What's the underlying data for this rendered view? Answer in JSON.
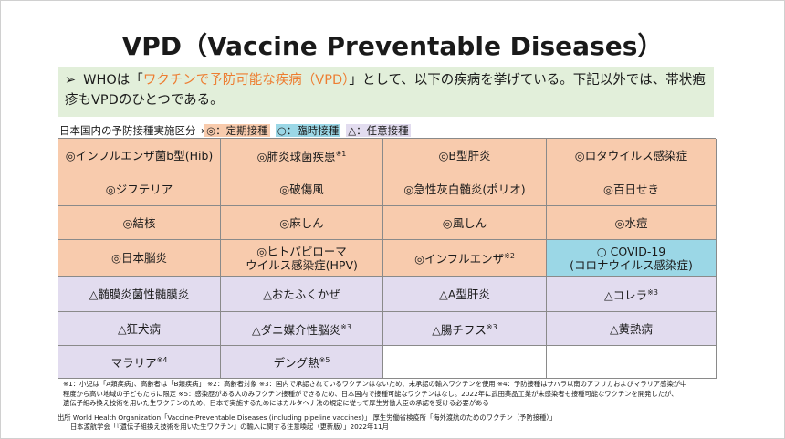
{
  "header": {
    "title": "VPD（Vaccine Preventable Diseases）"
  },
  "summary": {
    "bullet": "➢",
    "parts": [
      {
        "text": "WHOは「",
        "color": "#1a1a1a"
      },
      {
        "text": "ワクチンで予防可能な疾病（VPD）",
        "color": "#ed7d31"
      },
      {
        "text": "」として、以下の疾病を挙げている。下記以外では、帯状疱疹もVPDのひとつである。",
        "color": "#1a1a1a"
      }
    ]
  },
  "legend": {
    "label": "日本国内の予防接種実施区分→",
    "items": [
      {
        "text": "◎：定期接種",
        "color": "#f8cbad"
      },
      {
        "text": "○：臨時接種",
        "color": "#9bd7e6"
      },
      {
        "text": "△：任意接種",
        "color": "#e2dcef"
      }
    ]
  },
  "table": {
    "rows": [
      [
        {
          "lines": [
            "◎インフルエンザ菌b型(Hib)"
          ],
          "fill": "#f8cbad"
        },
        {
          "lines": [
            "◎肺炎球菌疾患"
          ],
          "note": "※1",
          "fill": "#f8cbad"
        },
        {
          "lines": [
            "◎B型肝炎"
          ],
          "fill": "#f8cbad"
        },
        {
          "lines": [
            "◎ロタウイルス感染症"
          ],
          "fill": "#f8cbad"
        }
      ],
      [
        {
          "lines": [
            "◎ジフテリア"
          ],
          "fill": "#f8cbad"
        },
        {
          "lines": [
            "◎破傷風"
          ],
          "fill": "#f8cbad"
        },
        {
          "lines": [
            "◎急性灰白髄炎(ポリオ)"
          ],
          "fill": "#f8cbad"
        },
        {
          "lines": [
            "◎百日せき"
          ],
          "fill": "#f8cbad"
        }
      ],
      [
        {
          "lines": [
            "◎結核"
          ],
          "fill": "#f8cbad"
        },
        {
          "lines": [
            "◎麻しん"
          ],
          "fill": "#f8cbad"
        },
        {
          "lines": [
            "◎風しん"
          ],
          "fill": "#f8cbad"
        },
        {
          "lines": [
            "◎水痘"
          ],
          "fill": "#f8cbad"
        }
      ],
      [
        {
          "lines": [
            "◎日本脳炎"
          ],
          "fill": "#f8cbad"
        },
        {
          "lines": [
            "◎ヒトパピローマ",
            "ウイルス感染症(HPV)"
          ],
          "fill": "#f8cbad"
        },
        {
          "lines": [
            "◎インフルエンザ"
          ],
          "note": "※2",
          "fill": "#f8cbad"
        },
        {
          "lines": [
            "○ COVID-19",
            "(コロナウイルス感染症)"
          ],
          "fill": "#9bd7e6"
        }
      ],
      [
        {
          "lines": [
            "△髄膜炎菌性髄膜炎"
          ],
          "fill": "#e2dcef"
        },
        {
          "lines": [
            "△おたふくかぜ"
          ],
          "fill": "#e2dcef"
        },
        {
          "lines": [
            "△A型肝炎"
          ],
          "fill": "#e2dcef"
        },
        {
          "lines": [
            "△コレラ"
          ],
          "note": "※3",
          "fill": "#e2dcef"
        }
      ],
      [
        {
          "lines": [
            "△狂犬病"
          ],
          "fill": "#e2dcef"
        },
        {
          "lines": [
            "△ダニ媒介性脳炎"
          ],
          "note": "※3",
          "fill": "#e2dcef"
        },
        {
          "lines": [
            "△腸チフス"
          ],
          "note": "※3",
          "fill": "#e2dcef"
        },
        {
          "lines": [
            "△黄熱病"
          ],
          "fill": "#e2dcef"
        }
      ],
      [
        {
          "lines": [
            "マラリア"
          ],
          "note": "※4",
          "fill": "#e2dcef"
        },
        {
          "lines": [
            "デング熱"
          ],
          "note": "※5",
          "fill": "#e2dcef"
        },
        {
          "fill": "#ffffff"
        },
        {
          "fill": "#ffffff"
        }
      ]
    ]
  },
  "footnotes": [
    "※1：小児は「A類疾病」、高齢者は「B類疾病」 ※2：高齢者対象 ※3：国内で承認されているワクチンはないため、未承認の輸入ワクチンを使用 ※4：予防接種はサハラ以南のアフリカおよびマラリア感染が中",
    "程度から高い地域の子どもたちに限定 ※5：感染歴がある人のみワクチン接種ができるため、日本国内で接種可能なワクチンはなし。2022年に武田薬品工業が未感染者も接種可能なワクチンを開発したが、",
    "遺伝子組み換え技術を用いた生ワクチンのため、日本で実施するためにはカルタヘナ法の規定に従って厚生労働大臣の承認を受ける必要がある"
  ],
  "sources": [
    "出所 World Health Organization「Vaccine-Preventable Diseases (including pipeline vaccines)」 厚生労働省検疫所「海外渡航のためのワクチン（予防接種）」",
    "日本渡航学会「『遺伝子組換え技術を用いた生ワクチン』の輸入に関する注意喚起（更新版）」2022年11月"
  ]
}
